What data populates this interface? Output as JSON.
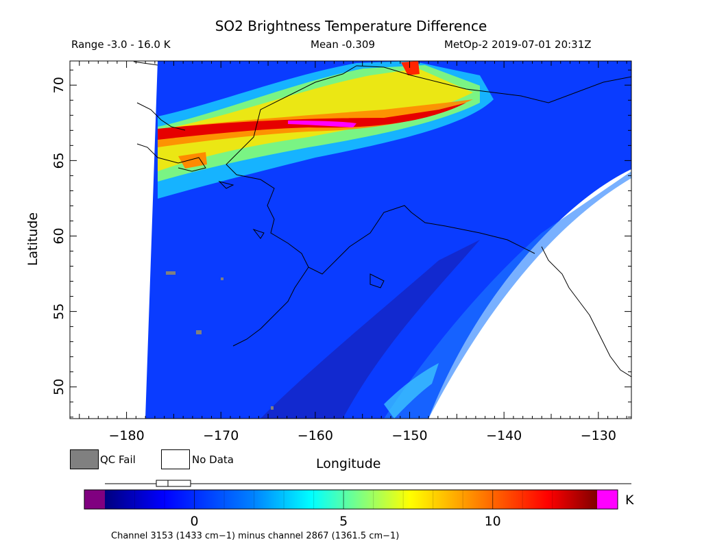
{
  "title": "SO2 Brightness Temperature Difference",
  "subtitle": {
    "range": "Range -3.0 - 16.0 K",
    "mean": "Mean -0.309",
    "satellite_time": "MetOp-2 2019-07-01 20:31Z"
  },
  "axes": {
    "xlabel": "Longitude",
    "ylabel": "Latitude",
    "x_ticks": [
      "−180",
      "−170",
      "−160",
      "−150",
      "−140",
      "−130"
    ],
    "y_ticks": [
      "70",
      "65",
      "60",
      "55",
      "50"
    ],
    "xlim": [
      -186,
      -126.5
    ],
    "ylim": [
      47.9,
      71.6
    ]
  },
  "legend": {
    "qc_fail": "QC Fail",
    "no_data": "No Data",
    "qc_color": "#808080",
    "no_data_color": "#ffffff"
  },
  "colorbar": {
    "unit": "K",
    "ticks": [
      "0",
      "5",
      "10"
    ],
    "range": [
      -3,
      13.5
    ],
    "under_color": "#800080",
    "over_color": "#ff00ff",
    "colors": [
      "#00007f",
      "#0000ff",
      "#0080ff",
      "#00ffff",
      "#80ff80",
      "#ffff00",
      "#ff8000",
      "#ff0000",
      "#800000"
    ]
  },
  "footnote": "Channel 3153 (1433 cm−1) minus channel 2867 (1361.5 cm−1)"
}
